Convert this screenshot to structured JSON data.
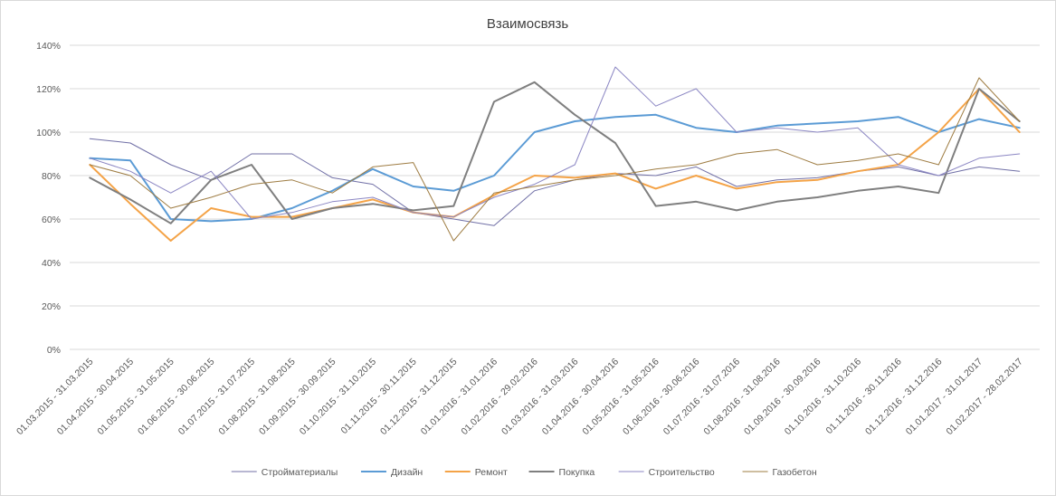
{
  "chart_data": {
    "type": "line",
    "title": "Взаимосвязь",
    "xlabel": "",
    "ylabel": "",
    "ylim": [
      0,
      140
    ],
    "yticks": [
      "0%",
      "20%",
      "40%",
      "60%",
      "80%",
      "100%",
      "120%",
      "140%"
    ],
    "grid": "horizontal",
    "legend": "bottom",
    "categories": [
      "01.03.2015 - 31.03.2015",
      "01.04.2015 - 30.04.2015",
      "01.05.2015 - 31.05.2015",
      "01.06.2015 - 30.06.2015",
      "01.07.2015 - 31.07.2015",
      "01.08.2015 - 31.08.2015",
      "01.09.2015 - 30.09.2015",
      "01.10.2015 - 31.10.2015",
      "01.11.2015 - 30.11.2015",
      "01.12.2015 - 31.12.2015",
      "01.01.2016 - 31.01.2016",
      "01.02.2016 - 29.02.2016",
      "01.03.2016 - 31.03.2016",
      "01.04.2016 - 30.04.2016",
      "01.05.2016 - 31.05.2016",
      "01.06.2016 - 30.06.2016",
      "01.07.2016 - 31.07.2016",
      "01.08.2016 - 31.08.2016",
      "01.09.2016 - 30.09.2016",
      "01.10.2016 - 31.10.2016",
      "01.11.2016 - 30.11.2016",
      "01.12.2016 - 31.12.2016",
      "01.01.2017 - 31.01.2017",
      "01.02.2017 - 28.02.2017"
    ],
    "series": [
      {
        "name": "Стройматериалы",
        "color": "#706fa6",
        "width": 1,
        "values": [
          97,
          95,
          85,
          78,
          90,
          90,
          79,
          76,
          63,
          60,
          57,
          73,
          78,
          81,
          80,
          84,
          75,
          78,
          79,
          82,
          84,
          80,
          84,
          82
        ]
      },
      {
        "name": "Дизайн",
        "color": "#5b9bd5",
        "width": 2,
        "values": [
          88,
          87,
          60,
          59,
          60,
          65,
          73,
          83,
          75,
          73,
          80,
          100,
          105,
          107,
          108,
          102,
          100,
          103,
          104,
          105,
          107,
          100,
          106,
          102
        ]
      },
      {
        "name": "Ремонт",
        "color": "#f4a347",
        "width": 2,
        "values": [
          85,
          67,
          50,
          65,
          61,
          61,
          65,
          69,
          63,
          61,
          71,
          80,
          79,
          81,
          74,
          80,
          74,
          77,
          78,
          82,
          85,
          100,
          120,
          100
        ]
      },
      {
        "name": "Покупка",
        "color": "#7f7f7f",
        "width": 2,
        "values": [
          79,
          69,
          58,
          78,
          85,
          60,
          65,
          67,
          64,
          66,
          114,
          123,
          108,
          95,
          66,
          68,
          64,
          68,
          70,
          73,
          75,
          72,
          120,
          105
        ]
      },
      {
        "name": "Строительство",
        "color": "#8b86c3",
        "width": 1,
        "values": [
          88,
          82,
          72,
          82,
          60,
          63,
          68,
          70,
          63,
          61,
          70,
          76,
          85,
          130,
          112,
          120,
          100,
          102,
          100,
          102,
          85,
          80,
          88,
          90
        ]
      },
      {
        "name": "Газобетон",
        "color": "#9e7c42",
        "width": 1,
        "values": [
          85,
          80,
          65,
          70,
          76,
          78,
          72,
          84,
          86,
          50,
          72,
          75,
          78,
          80,
          83,
          85,
          90,
          92,
          85,
          87,
          90,
          85,
          125,
          105
        ]
      }
    ]
  }
}
